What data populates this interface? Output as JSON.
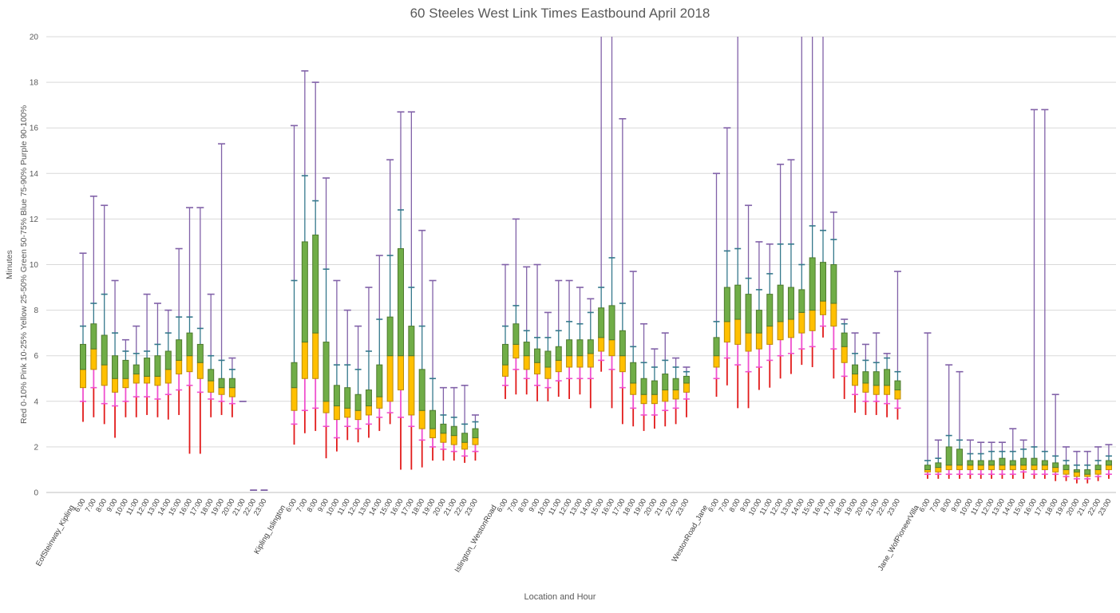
{
  "chart_data": {
    "type": "boxplot",
    "title": "60 Steeles West Link Times Eastbound April 2018",
    "xlabel": "Location and Hour",
    "ylabel": "Minutes",
    "ylabel_secondary": "Red 0-10%  Pink 10-25%  Yellow 25-50%  Green 50-75%  Blue 75-90%  Purple 90-100%",
    "ylim": [
      0,
      20
    ],
    "yticks": [
      0,
      2,
      4,
      6,
      8,
      10,
      12,
      14,
      16,
      18,
      20
    ],
    "grid": true,
    "hours": [
      "6:00",
      "7:00",
      "8:00",
      "9:00",
      "10:00",
      "11:00",
      "12:00",
      "13:00",
      "14:00",
      "15:00",
      "16:00",
      "17:00",
      "18:00",
      "19:00",
      "20:00",
      "21:00",
      "22:00",
      "23:00"
    ],
    "percentile_order": [
      "min",
      "p10",
      "p25",
      "p50",
      "p75",
      "p90",
      "max"
    ],
    "colors": {
      "red_0_10": "#E21A1A",
      "pink_10_25": "#F050CE",
      "yellow_25_50": "#FFC000",
      "yellow_border": "#BC8C00",
      "green_50_75": "#70AD47",
      "green_border": "#4E7A2E",
      "blue_75_90": "#35788C",
      "purple_90_100": "#8161A8",
      "grid": "#D9D9D9",
      "axis": "#BFBFBF",
      "text": "#595959"
    },
    "groups": [
      {
        "name": "EofSteinway_Kipling",
        "boxes": [
          [
            3.1,
            4.0,
            4.6,
            5.4,
            6.5,
            7.3,
            10.5
          ],
          [
            3.3,
            4.6,
            5.4,
            6.3,
            7.4,
            8.3,
            13.0
          ],
          [
            3.0,
            3.9,
            4.7,
            5.6,
            6.9,
            8.7,
            12.6
          ],
          [
            2.4,
            3.8,
            4.4,
            5.0,
            6.0,
            7.0,
            9.3
          ],
          [
            3.3,
            4.0,
            4.6,
            5.0,
            5.8,
            6.2,
            6.7
          ],
          [
            3.3,
            4.2,
            4.8,
            5.2,
            5.6,
            6.1,
            7.3
          ],
          [
            3.4,
            4.2,
            4.8,
            5.1,
            5.9,
            6.2,
            8.7
          ],
          [
            3.3,
            4.1,
            4.7,
            5.1,
            6.0,
            6.5,
            8.3
          ],
          [
            3.2,
            4.3,
            4.8,
            5.4,
            6.2,
            7.0,
            8.0
          ],
          [
            3.4,
            4.5,
            5.2,
            5.8,
            6.7,
            7.7,
            10.7
          ],
          [
            1.7,
            4.7,
            5.3,
            6.0,
            7.0,
            7.7,
            12.5
          ],
          [
            1.7,
            4.4,
            5.0,
            5.7,
            6.5,
            7.2,
            12.5
          ],
          [
            3.3,
            4.1,
            4.4,
            4.9,
            5.4,
            6.0,
            8.7
          ],
          [
            3.4,
            4.0,
            4.3,
            4.6,
            5.0,
            5.8,
            15.3
          ],
          [
            3.3,
            3.9,
            4.2,
            4.6,
            5.0,
            5.4,
            5.9
          ],
          [
            4.0,
            4.0,
            4.0,
            4.0,
            4.0,
            4.0,
            4.0
          ],
          [
            0.1,
            0.1,
            0.1,
            0.1,
            0.1,
            0.1,
            0.1
          ],
          [
            0.1,
            0.1,
            0.1,
            0.1,
            0.1,
            0.1,
            0.1
          ]
        ]
      },
      {
        "name": "Kipling_Islington",
        "boxes": [
          [
            2.1,
            3.0,
            3.6,
            4.6,
            5.7,
            9.3,
            16.1
          ],
          [
            2.6,
            3.6,
            5.0,
            6.6,
            11.0,
            13.9,
            18.5
          ],
          [
            2.7,
            3.7,
            5.0,
            7.0,
            11.3,
            12.8,
            18.0
          ],
          [
            1.5,
            2.9,
            3.5,
            4.0,
            6.6,
            9.8,
            13.8
          ],
          [
            1.8,
            2.4,
            3.2,
            3.8,
            4.7,
            5.6,
            9.3
          ],
          [
            2.3,
            2.9,
            3.3,
            3.7,
            4.6,
            5.6,
            8.0
          ],
          [
            2.2,
            2.8,
            3.2,
            3.6,
            4.3,
            5.4,
            7.3
          ],
          [
            2.4,
            3.0,
            3.4,
            3.8,
            4.5,
            6.2,
            9.0
          ],
          [
            2.7,
            3.3,
            3.7,
            4.2,
            5.6,
            7.6,
            10.4
          ],
          [
            3.0,
            3.5,
            4.0,
            6.0,
            7.7,
            10.4,
            14.6
          ],
          [
            1.0,
            3.3,
            4.5,
            6.0,
            10.7,
            12.4,
            16.7
          ],
          [
            1.0,
            2.9,
            3.4,
            6.0,
            7.3,
            9.0,
            16.7
          ],
          [
            1.1,
            2.3,
            2.8,
            3.6,
            5.4,
            7.3,
            11.5
          ],
          [
            1.4,
            2.0,
            2.4,
            2.8,
            3.6,
            5.0,
            9.3
          ],
          [
            1.4,
            1.9,
            2.2,
            2.6,
            3.0,
            3.4,
            4.6
          ],
          [
            1.4,
            1.8,
            2.1,
            2.5,
            2.9,
            3.3,
            4.6
          ],
          [
            1.3,
            1.6,
            1.9,
            2.2,
            2.6,
            3.0,
            4.7
          ],
          [
            1.4,
            1.8,
            2.1,
            2.4,
            2.8,
            3.1,
            3.4
          ]
        ]
      },
      {
        "name": "Islington_WestonRoad",
        "boxes": [
          [
            4.1,
            4.7,
            5.1,
            5.6,
            6.5,
            7.3,
            10.0
          ],
          [
            4.3,
            5.4,
            5.9,
            6.5,
            7.4,
            8.2,
            12.0
          ],
          [
            4.3,
            5.0,
            5.4,
            6.0,
            6.6,
            7.1,
            9.9
          ],
          [
            4.0,
            4.7,
            5.2,
            5.7,
            6.3,
            6.8,
            10.0
          ],
          [
            4.0,
            4.6,
            5.0,
            5.5,
            6.2,
            6.8,
            7.9
          ],
          [
            4.2,
            4.9,
            5.3,
            5.8,
            6.4,
            7.1,
            9.3
          ],
          [
            4.1,
            5.0,
            5.5,
            6.0,
            6.7,
            7.5,
            9.3
          ],
          [
            4.3,
            5.0,
            5.5,
            6.0,
            6.7,
            7.4,
            9.0
          ],
          [
            3.7,
            5.0,
            5.5,
            6.1,
            6.7,
            7.9,
            8.5
          ],
          [
            5.3,
            5.8,
            6.2,
            6.8,
            8.1,
            9.0,
            20
          ],
          [
            3.7,
            5.4,
            6.0,
            6.7,
            8.2,
            10.3,
            20
          ],
          [
            3.0,
            4.6,
            5.3,
            6.0,
            7.1,
            8.3,
            16.4
          ],
          [
            2.9,
            3.7,
            4.3,
            4.8,
            5.7,
            6.4,
            9.7
          ],
          [
            2.7,
            3.4,
            3.9,
            4.3,
            5.0,
            5.7,
            7.4
          ],
          [
            2.8,
            3.4,
            3.9,
            4.3,
            4.9,
            5.5,
            6.3
          ],
          [
            2.9,
            3.6,
            4.0,
            4.5,
            5.2,
            5.8,
            7.0
          ],
          [
            3.0,
            3.7,
            4.1,
            4.5,
            5.0,
            5.5,
            5.9
          ],
          [
            3.3,
            4.1,
            4.4,
            4.8,
            5.1,
            5.3,
            5.5
          ]
        ]
      },
      {
        "name": "WestonRoad_Jane",
        "boxes": [
          [
            4.2,
            5.0,
            5.5,
            6.0,
            6.8,
            7.5,
            14.0
          ],
          [
            4.7,
            5.9,
            6.6,
            7.5,
            9.0,
            10.6,
            16.0
          ],
          [
            3.7,
            5.6,
            6.5,
            7.6,
            9.1,
            10.7,
            20
          ],
          [
            3.7,
            5.3,
            6.2,
            7.0,
            8.7,
            9.4,
            12.6
          ],
          [
            4.5,
            5.5,
            6.3,
            7.0,
            8.0,
            8.9,
            11.0
          ],
          [
            4.6,
            5.8,
            6.5,
            7.3,
            8.7,
            9.6,
            10.9
          ],
          [
            5.0,
            6.0,
            6.7,
            7.5,
            9.1,
            10.9,
            14.4
          ],
          [
            5.2,
            6.1,
            6.8,
            7.6,
            9.0,
            10.9,
            14.6
          ],
          [
            5.6,
            6.3,
            7.0,
            7.9,
            8.9,
            10.0,
            20
          ],
          [
            5.5,
            6.4,
            7.1,
            8.0,
            10.3,
            11.7,
            20
          ],
          [
            6.8,
            7.3,
            7.8,
            8.4,
            10.1,
            11.5,
            20
          ],
          [
            5.0,
            6.3,
            7.3,
            8.3,
            10.0,
            11.1,
            12.3
          ],
          [
            4.1,
            5.1,
            5.7,
            6.4,
            7.0,
            7.4,
            7.6
          ],
          [
            3.5,
            4.3,
            4.7,
            5.2,
            5.6,
            6.1,
            7.0
          ],
          [
            3.4,
            4.0,
            4.4,
            4.8,
            5.3,
            5.8,
            6.5
          ],
          [
            3.4,
            4.0,
            4.3,
            4.7,
            5.3,
            5.7,
            7.0
          ],
          [
            3.3,
            3.9,
            4.3,
            4.7,
            5.4,
            5.9,
            6.1
          ],
          [
            3.2,
            3.7,
            4.1,
            4.5,
            4.9,
            5.3,
            9.7
          ]
        ]
      },
      {
        "name": "Jane_WofPioneerVilla",
        "boxes": [
          [
            0.6,
            0.8,
            0.9,
            1.0,
            1.2,
            1.4,
            7.0
          ],
          [
            0.6,
            0.8,
            0.9,
            1.1,
            1.3,
            1.5,
            2.3
          ],
          [
            0.6,
            0.8,
            1.0,
            1.2,
            2.0,
            2.5,
            5.6
          ],
          [
            0.6,
            0.8,
            1.0,
            1.2,
            1.9,
            2.3,
            5.3
          ],
          [
            0.6,
            0.8,
            1.0,
            1.2,
            1.4,
            1.7,
            2.3
          ],
          [
            0.6,
            0.8,
            1.0,
            1.2,
            1.4,
            1.7,
            2.2
          ],
          [
            0.6,
            0.8,
            1.0,
            1.2,
            1.4,
            1.8,
            2.2
          ],
          [
            0.6,
            0.8,
            1.0,
            1.2,
            1.5,
            1.8,
            2.2
          ],
          [
            0.6,
            0.8,
            1.0,
            1.2,
            1.4,
            1.8,
            2.8
          ],
          [
            0.6,
            0.9,
            1.0,
            1.2,
            1.5,
            1.9,
            2.3
          ],
          [
            0.6,
            0.8,
            1.0,
            1.2,
            1.5,
            2.0,
            16.8
          ],
          [
            0.6,
            0.8,
            1.0,
            1.2,
            1.4,
            1.8,
            16.8
          ],
          [
            0.5,
            0.8,
            0.9,
            1.1,
            1.3,
            1.6,
            4.3
          ],
          [
            0.5,
            0.7,
            0.8,
            1.0,
            1.2,
            1.4,
            2.0
          ],
          [
            0.4,
            0.6,
            0.7,
            0.9,
            1.0,
            1.2,
            1.8
          ],
          [
            0.4,
            0.6,
            0.7,
            0.8,
            1.0,
            1.2,
            1.8
          ],
          [
            0.5,
            0.7,
            0.8,
            1.0,
            1.2,
            1.4,
            2.0
          ],
          [
            0.6,
            0.8,
            1.0,
            1.2,
            1.4,
            1.6,
            2.1
          ]
        ]
      }
    ]
  }
}
